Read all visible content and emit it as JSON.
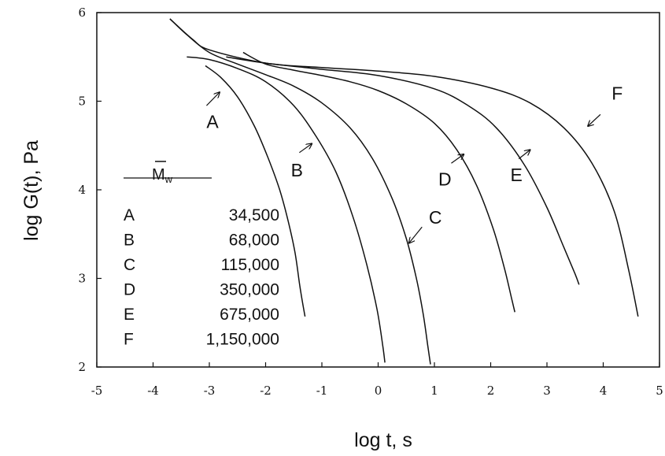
{
  "chart_data": {
    "type": "line",
    "xlabel": "log t, s",
    "ylabel": "log G(t), Pa",
    "xlim": [
      -5,
      5
    ],
    "ylim": [
      2,
      6
    ],
    "xticks": [
      "-5",
      "-4",
      "-3",
      "-2",
      "-1",
      "0",
      "1",
      "2",
      "3",
      "4",
      "5"
    ],
    "yticks": [
      "2",
      "3",
      "4",
      "5",
      "6"
    ],
    "grid": false,
    "legend": {
      "title_symbol": "M",
      "title_subscript": "w",
      "entries": [
        {
          "key": "A",
          "value": "34,500"
        },
        {
          "key": "B",
          "value": "68,000"
        },
        {
          "key": "C",
          "value": "115,000"
        },
        {
          "key": "D",
          "value": "350,000"
        },
        {
          "key": "E",
          "value": "675,000"
        },
        {
          "key": "F",
          "value": "1,150,000"
        }
      ]
    },
    "series": [
      {
        "name": "A",
        "x": [
          -3.07,
          -2.8,
          -2.5,
          -2.2,
          -1.95,
          -1.75,
          -1.6,
          -1.48,
          -1.4,
          -1.35,
          -1.3
        ],
        "y": [
          5.4,
          5.27,
          5.05,
          4.72,
          4.35,
          4.0,
          3.65,
          3.3,
          2.95,
          2.75,
          2.57
        ]
      },
      {
        "name": "B",
        "x": [
          -3.4,
          -3.0,
          -2.5,
          -2.0,
          -1.5,
          -1.1,
          -0.75,
          -0.45,
          -0.2,
          -0.02,
          0.08,
          0.12
        ],
        "y": [
          5.5,
          5.47,
          5.37,
          5.22,
          4.95,
          4.6,
          4.2,
          3.7,
          3.15,
          2.65,
          2.25,
          2.05
        ]
      },
      {
        "name": "C",
        "x": [
          -3.7,
          -3.4,
          -3.0,
          -2.5,
          -2.0,
          -1.5,
          -1.0,
          -0.5,
          -0.1,
          0.25,
          0.5,
          0.68,
          0.8,
          0.88,
          0.93
        ],
        "y": [
          5.93,
          5.75,
          5.55,
          5.42,
          5.3,
          5.17,
          4.98,
          4.7,
          4.35,
          3.9,
          3.45,
          3.0,
          2.6,
          2.25,
          2.03
        ]
      },
      {
        "name": "D",
        "x": [
          -2.4,
          -2.0,
          -1.5,
          -1.0,
          -0.5,
          0.0,
          0.5,
          1.0,
          1.4,
          1.75,
          2.05,
          2.25,
          2.38,
          2.43
        ],
        "y": [
          5.55,
          5.42,
          5.35,
          5.29,
          5.22,
          5.12,
          4.97,
          4.75,
          4.45,
          4.05,
          3.55,
          3.1,
          2.75,
          2.62
        ]
      },
      {
        "name": "E",
        "x": [
          -2.7,
          -2.0,
          -1.0,
          0.0,
          1.0,
          1.6,
          2.1,
          2.6,
          3.0,
          3.3,
          3.5,
          3.57
        ],
        "y": [
          5.5,
          5.43,
          5.36,
          5.29,
          5.14,
          4.95,
          4.7,
          4.28,
          3.8,
          3.35,
          3.05,
          2.93
        ]
      },
      {
        "name": "F",
        "x": [
          -3.7,
          -3.3,
          -3.0,
          -2.0,
          -1.0,
          0.0,
          1.0,
          2.0,
          2.7,
          3.3,
          3.8,
          4.2,
          4.45,
          4.62
        ],
        "y": [
          5.93,
          5.7,
          5.58,
          5.43,
          5.38,
          5.34,
          5.28,
          5.15,
          4.98,
          4.7,
          4.3,
          3.75,
          3.1,
          2.57
        ]
      }
    ],
    "curve_labels": [
      {
        "name": "A",
        "x": -3.05,
        "y": 4.7,
        "arrow_from": [
          -3.05,
          4.95
        ],
        "arrow_to": [
          -2.82,
          5.1
        ]
      },
      {
        "name": "B",
        "x": -1.55,
        "y": 4.15,
        "arrow_from": [
          -1.4,
          4.42
        ],
        "arrow_to": [
          -1.18,
          4.52
        ]
      },
      {
        "name": "C",
        "x": 0.9,
        "y": 3.62,
        "arrow_from": [
          0.78,
          3.58
        ],
        "arrow_to": [
          0.55,
          3.4
        ]
      },
      {
        "name": "D",
        "x": 1.07,
        "y": 4.05,
        "arrow_from": [
          1.3,
          4.3
        ],
        "arrow_to": [
          1.52,
          4.4
        ]
      },
      {
        "name": "E",
        "x": 2.35,
        "y": 4.1,
        "arrow_from": [
          2.5,
          4.35
        ],
        "arrow_to": [
          2.7,
          4.45
        ]
      },
      {
        "name": "F",
        "x": 4.15,
        "y": 5.02,
        "arrow_from": [
          3.95,
          4.85
        ],
        "arrow_to": [
          3.73,
          4.72
        ]
      }
    ]
  }
}
